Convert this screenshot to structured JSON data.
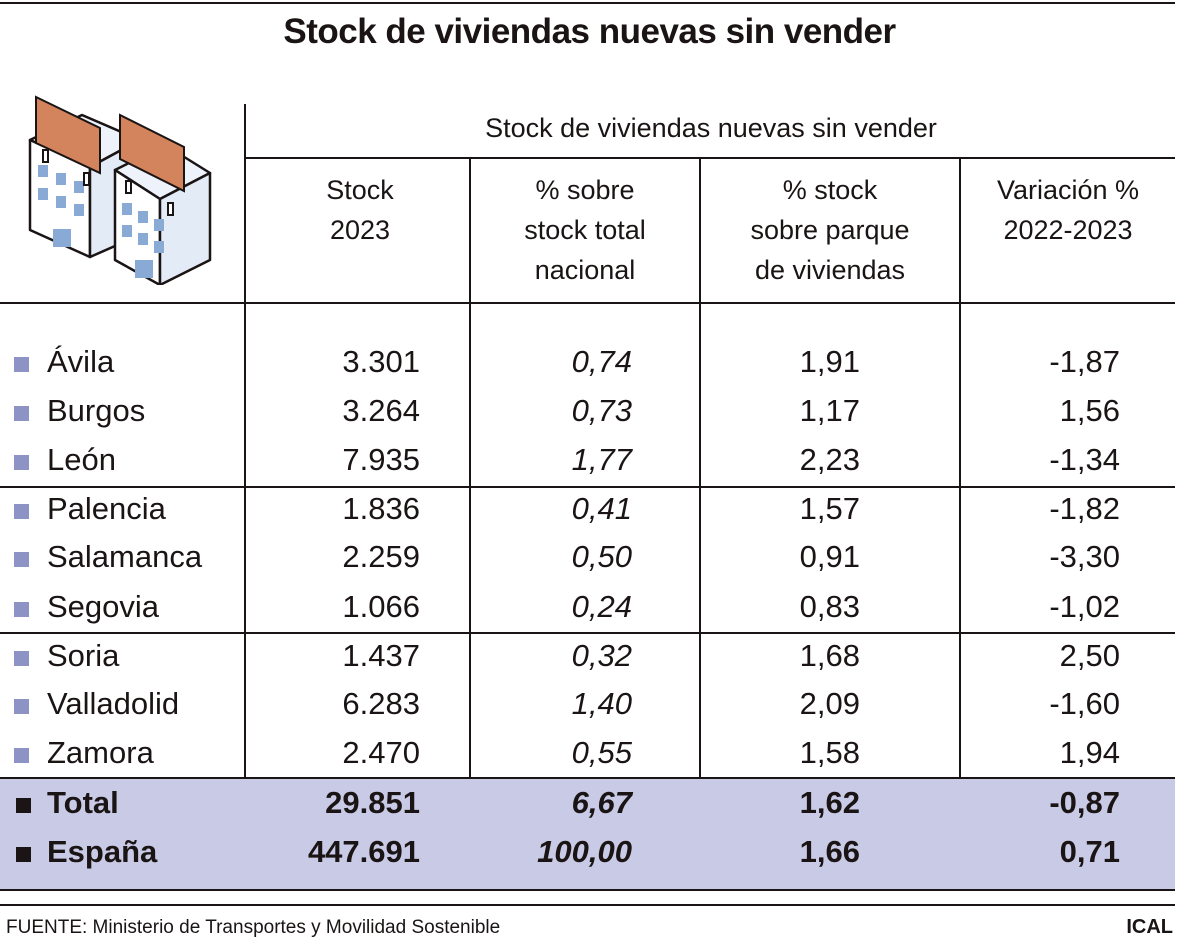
{
  "title": "Stock de viviendas nuevas sin vender",
  "group_header": "Stock de viviendas nuevas sin vender",
  "columns": [
    [
      "Stock",
      "2023"
    ],
    [
      "% sobre",
      "stock total",
      "nacional"
    ],
    [
      "% stock",
      "sobre parque",
      "de viviendas"
    ],
    [
      "Variación %",
      "2022-2023"
    ]
  ],
  "chart_data": {
    "type": "table",
    "title": "Stock de viviendas nuevas sin vender",
    "headers": [
      "",
      "Stock 2023",
      "% sobre stock total nacional",
      "% stock sobre parque de viviendas",
      "Variación % 2022-2023"
    ],
    "rows": [
      {
        "name": "Ávila",
        "values": [
          "3.301",
          "0,74",
          "1,91",
          "-1,87"
        ]
      },
      {
        "name": "Burgos",
        "values": [
          "3.264",
          "0,73",
          "1,17",
          "1,56"
        ]
      },
      {
        "name": "León",
        "values": [
          "7.935",
          "1,77",
          "2,23",
          "-1,34"
        ]
      },
      {
        "name": "Palencia",
        "values": [
          "1.836",
          "0,41",
          "1,57",
          "-1,82"
        ]
      },
      {
        "name": "Salamanca",
        "values": [
          "2.259",
          "0,50",
          "0,91",
          "-3,30"
        ]
      },
      {
        "name": "Segovia",
        "values": [
          "1.066",
          "0,24",
          "0,83",
          "-1,02"
        ]
      },
      {
        "name": "Soria",
        "values": [
          "1.437",
          "0,32",
          "1,68",
          "2,50"
        ]
      },
      {
        "name": "Valladolid",
        "values": [
          "6.283",
          "1,40",
          "2,09",
          "-1,60"
        ]
      },
      {
        "name": "Zamora",
        "values": [
          "2.470",
          "0,55",
          "1,58",
          "1,94"
        ]
      },
      {
        "name": "Total",
        "values": [
          "29.851",
          "6,67",
          "1,62",
          "-0,87"
        ],
        "bold": true
      },
      {
        "name": "España",
        "values": [
          "447.691",
          "100,00",
          "1,66",
          "0,71"
        ],
        "bold": true
      }
    ]
  },
  "colors": {
    "band": "#c8cae6",
    "bullet": "#8e93c6",
    "sign": "#d4845c",
    "window": "#8aaad6"
  },
  "footer": {
    "source": "FUENTE: Ministerio de Transportes y Movilidad Sostenible",
    "brand": "ICAL"
  }
}
